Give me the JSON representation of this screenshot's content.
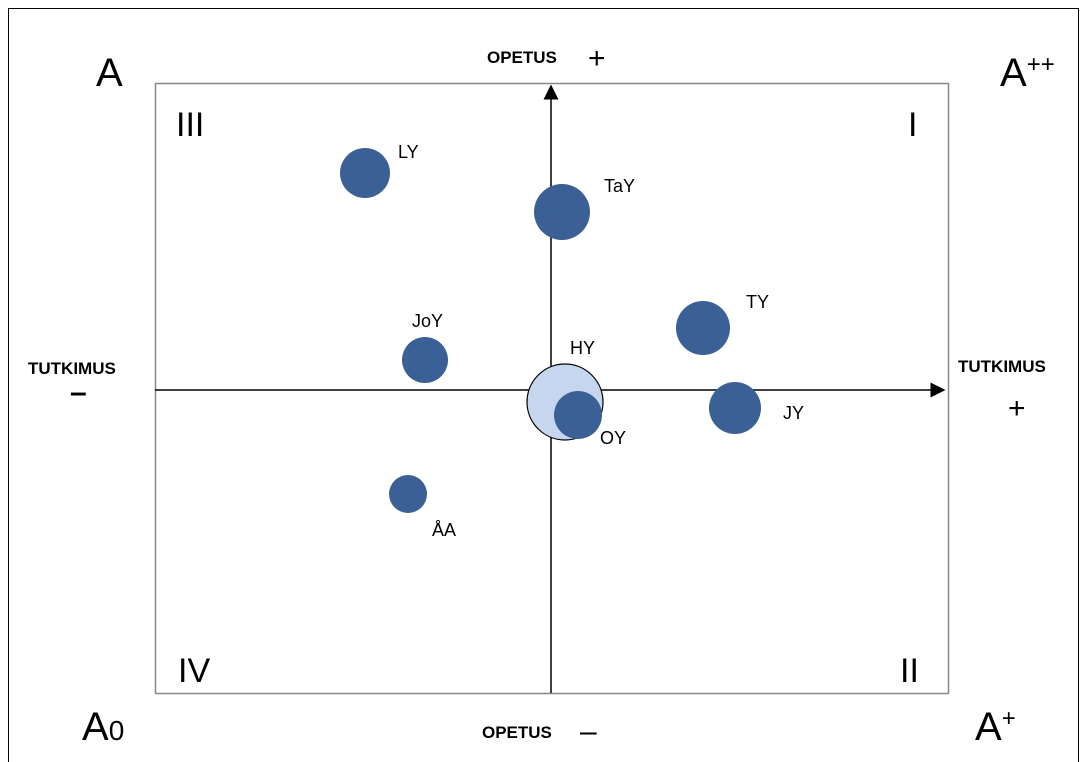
{
  "corners": {
    "top_left": {
      "base": "A"
    },
    "top_right": {
      "base": "A",
      "sup": "++"
    },
    "bottom_left": {
      "base": "A",
      "sub": "0"
    },
    "bottom_right": {
      "base": "A",
      "sup": "+"
    }
  },
  "axes": {
    "top": {
      "label": "OPETUS",
      "sign": "+"
    },
    "bottom": {
      "label": "OPETUS",
      "sign": "–"
    },
    "left": {
      "label": "TUTKIMUS",
      "sign": "–"
    },
    "right": {
      "label": "TUTKIMUS",
      "sign": "+"
    }
  },
  "quadrants": [
    "I",
    "II",
    "III",
    "IV"
  ],
  "nodes": [
    {
      "label": "LY"
    },
    {
      "label": "TaY"
    },
    {
      "label": "TY"
    },
    {
      "label": "JoY"
    },
    {
      "label": "HY"
    },
    {
      "label": "OY"
    },
    {
      "label": "JY"
    },
    {
      "label": "ÅA"
    }
  ]
}
